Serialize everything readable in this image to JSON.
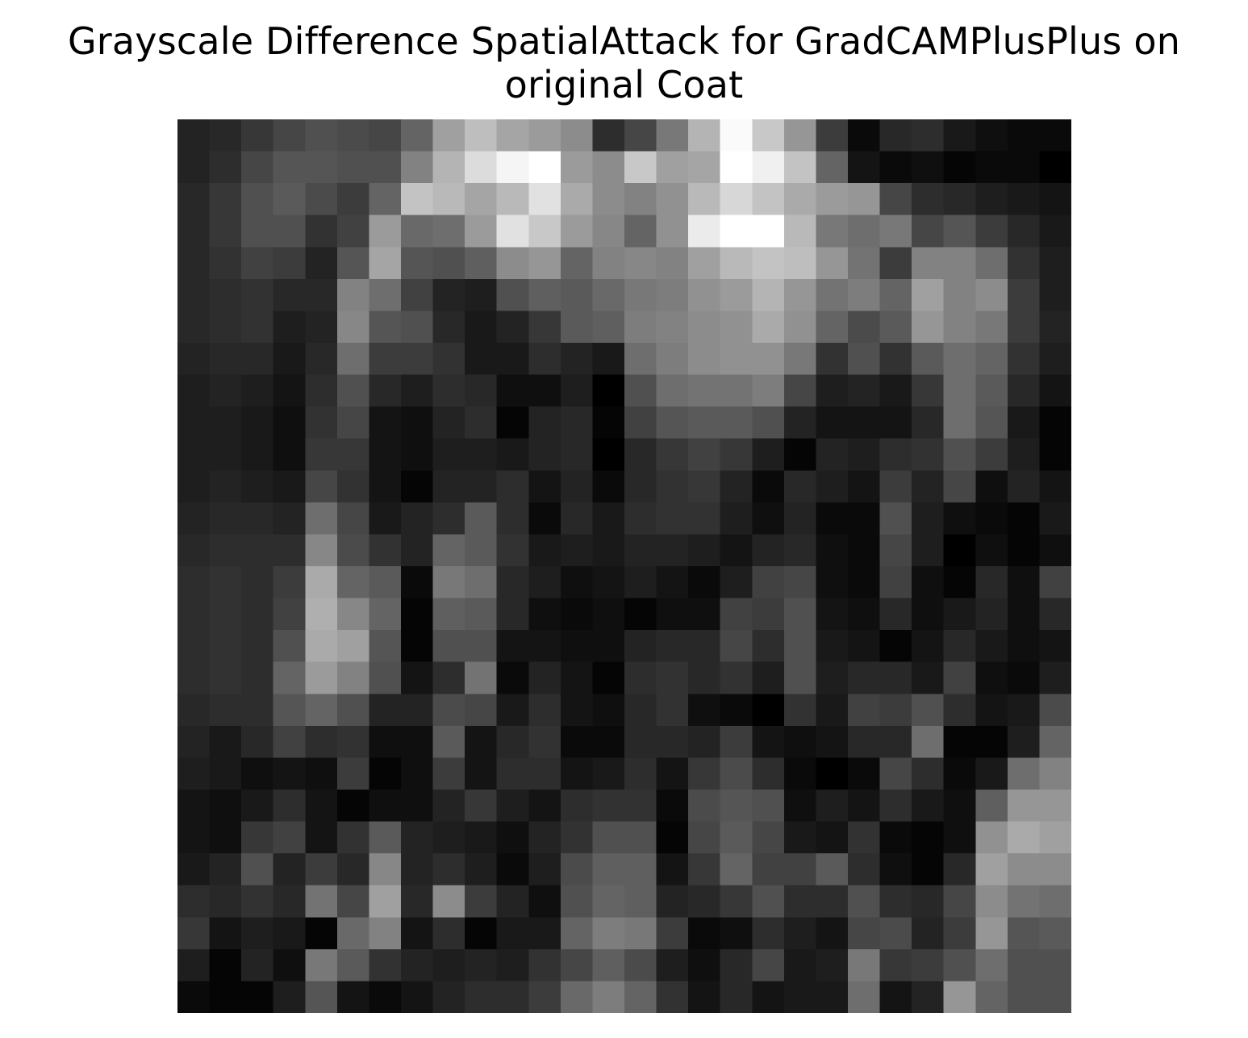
{
  "figure": {
    "title_line1": "Grayscale Difference SpatialAttack for GradCAMPlusPlus on",
    "title_line2": "original Coat"
  },
  "chart_data": {
    "type": "heatmap",
    "title": "Grayscale Difference SpatialAttack for GradCAMPlusPlus on original Coat",
    "colormap": "gray",
    "axes_visible": false,
    "value_range": [
      0,
      255
    ],
    "rows": 28,
    "cols": 28,
    "values": [
      [
        35,
        40,
        55,
        70,
        80,
        75,
        70,
        100,
        160,
        190,
        165,
        155,
        140,
        45,
        70,
        120,
        180,
        250,
        200,
        150,
        60,
        10,
        40,
        45,
        25,
        15,
        10,
        10
      ],
      [
        35,
        45,
        70,
        85,
        85,
        80,
        80,
        130,
        180,
        220,
        245,
        255,
        155,
        140,
        200,
        160,
        165,
        255,
        240,
        195,
        100,
        20,
        10,
        15,
        5,
        10,
        10,
        0
      ],
      [
        40,
        55,
        80,
        90,
        75,
        60,
        100,
        195,
        185,
        165,
        185,
        225,
        170,
        140,
        130,
        145,
        185,
        215,
        195,
        170,
        155,
        150,
        70,
        45,
        40,
        30,
        25,
        20
      ],
      [
        40,
        55,
        80,
        80,
        50,
        65,
        155,
        105,
        110,
        155,
        225,
        200,
        155,
        135,
        100,
        145,
        235,
        255,
        255,
        185,
        120,
        110,
        120,
        70,
        85,
        60,
        40,
        25
      ],
      [
        40,
        50,
        65,
        60,
        35,
        85,
        165,
        85,
        80,
        95,
        140,
        150,
        100,
        130,
        135,
        130,
        160,
        185,
        195,
        190,
        150,
        115,
        60,
        130,
        130,
        110,
        50,
        30
      ],
      [
        40,
        45,
        50,
        40,
        40,
        130,
        110,
        65,
        35,
        30,
        80,
        95,
        90,
        105,
        120,
        125,
        145,
        155,
        180,
        150,
        115,
        125,
        100,
        160,
        130,
        140,
        60,
        30
      ],
      [
        40,
        45,
        50,
        30,
        35,
        135,
        85,
        80,
        40,
        25,
        35,
        55,
        90,
        95,
        125,
        130,
        140,
        145,
        170,
        145,
        100,
        75,
        90,
        150,
        130,
        120,
        60,
        35
      ],
      [
        35,
        40,
        40,
        25,
        40,
        110,
        60,
        60,
        50,
        25,
        25,
        45,
        35,
        25,
        110,
        125,
        140,
        145,
        145,
        120,
        50,
        80,
        50,
        90,
        110,
        100,
        50,
        30
      ],
      [
        30,
        35,
        30,
        20,
        45,
        80,
        40,
        30,
        45,
        40,
        15,
        15,
        30,
        0,
        80,
        110,
        115,
        115,
        125,
        70,
        30,
        35,
        25,
        55,
        110,
        90,
        40,
        20
      ],
      [
        30,
        30,
        25,
        15,
        50,
        70,
        20,
        15,
        35,
        45,
        5,
        35,
        40,
        5,
        65,
        85,
        90,
        90,
        80,
        35,
        20,
        20,
        20,
        40,
        110,
        85,
        25,
        5
      ],
      [
        30,
        30,
        25,
        15,
        55,
        55,
        20,
        15,
        30,
        30,
        25,
        35,
        40,
        0,
        40,
        55,
        65,
        55,
        30,
        5,
        35,
        30,
        45,
        50,
        80,
        60,
        30,
        5
      ],
      [
        30,
        35,
        30,
        25,
        70,
        50,
        20,
        5,
        35,
        35,
        45,
        20,
        35,
        10,
        40,
        50,
        55,
        35,
        10,
        40,
        30,
        20,
        60,
        35,
        70,
        15,
        35,
        20
      ],
      [
        35,
        40,
        40,
        35,
        110,
        70,
        25,
        35,
        45,
        90,
        45,
        10,
        40,
        25,
        45,
        50,
        50,
        30,
        15,
        35,
        10,
        10,
        80,
        30,
        15,
        10,
        5,
        25
      ],
      [
        40,
        45,
        45,
        45,
        135,
        75,
        50,
        35,
        100,
        90,
        50,
        25,
        30,
        25,
        35,
        35,
        30,
        20,
        35,
        40,
        15,
        10,
        70,
        30,
        0,
        15,
        5,
        15
      ],
      [
        45,
        50,
        45,
        60,
        170,
        100,
        90,
        10,
        120,
        110,
        40,
        30,
        15,
        20,
        30,
        20,
        10,
        30,
        65,
        70,
        15,
        10,
        65,
        15,
        5,
        40,
        15,
        65
      ],
      [
        45,
        50,
        45,
        65,
        175,
        135,
        100,
        5,
        95,
        90,
        40,
        15,
        10,
        15,
        5,
        15,
        15,
        65,
        60,
        80,
        20,
        15,
        40,
        15,
        25,
        35,
        15,
        40
      ],
      [
        45,
        50,
        45,
        80,
        170,
        160,
        85,
        5,
        80,
        80,
        20,
        20,
        15,
        15,
        35,
        40,
        40,
        70,
        45,
        80,
        25,
        20,
        5,
        20,
        40,
        25,
        15,
        20
      ],
      [
        45,
        50,
        45,
        100,
        155,
        130,
        80,
        20,
        45,
        115,
        10,
        35,
        20,
        5,
        45,
        50,
        40,
        50,
        30,
        80,
        30,
        40,
        40,
        25,
        65,
        15,
        10,
        30
      ],
      [
        40,
        45,
        45,
        85,
        100,
        80,
        35,
        35,
        75,
        70,
        25,
        45,
        20,
        15,
        40,
        50,
        15,
        10,
        0,
        50,
        25,
        65,
        60,
        80,
        45,
        20,
        25,
        75
      ],
      [
        35,
        25,
        40,
        65,
        45,
        50,
        15,
        15,
        90,
        20,
        40,
        50,
        10,
        10,
        40,
        40,
        35,
        60,
        20,
        15,
        20,
        40,
        40,
        110,
        5,
        5,
        30,
        100
      ],
      [
        30,
        25,
        15,
        20,
        15,
        60,
        5,
        15,
        60,
        20,
        45,
        45,
        20,
        25,
        45,
        20,
        55,
        75,
        45,
        10,
        0,
        10,
        70,
        45,
        10,
        25,
        110,
        130
      ],
      [
        20,
        15,
        25,
        45,
        20,
        5,
        15,
        15,
        35,
        55,
        30,
        20,
        45,
        50,
        50,
        10,
        75,
        85,
        80,
        15,
        30,
        20,
        45,
        25,
        15,
        95,
        150,
        150
      ],
      [
        20,
        15,
        55,
        65,
        20,
        50,
        90,
        35,
        30,
        25,
        15,
        35,
        50,
        80,
        80,
        5,
        70,
        90,
        70,
        25,
        20,
        50,
        10,
        5,
        15,
        145,
        170,
        160
      ],
      [
        25,
        35,
        80,
        35,
        60,
        40,
        135,
        35,
        45,
        30,
        10,
        30,
        75,
        95,
        95,
        20,
        55,
        100,
        65,
        65,
        90,
        45,
        15,
        5,
        40,
        160,
        140,
        140
      ],
      [
        45,
        40,
        50,
        40,
        115,
        70,
        160,
        40,
        140,
        60,
        35,
        15,
        80,
        100,
        95,
        35,
        40,
        55,
        80,
        45,
        45,
        80,
        45,
        40,
        70,
        140,
        115,
        110
      ],
      [
        55,
        20,
        30,
        25,
        5,
        105,
        130,
        20,
        45,
        5,
        25,
        25,
        100,
        125,
        120,
        60,
        10,
        15,
        45,
        30,
        20,
        70,
        75,
        35,
        60,
        150,
        85,
        90
      ],
      [
        30,
        5,
        35,
        15,
        120,
        90,
        50,
        35,
        30,
        35,
        30,
        50,
        70,
        95,
        75,
        30,
        15,
        40,
        70,
        25,
        30,
        120,
        55,
        60,
        80,
        110,
        80,
        80
      ],
      [
        10,
        5,
        5,
        30,
        85,
        20,
        10,
        20,
        35,
        45,
        45,
        60,
        105,
        125,
        100,
        50,
        20,
        40,
        20,
        25,
        25,
        110,
        20,
        35,
        150,
        100,
        80,
        80
      ]
    ]
  }
}
